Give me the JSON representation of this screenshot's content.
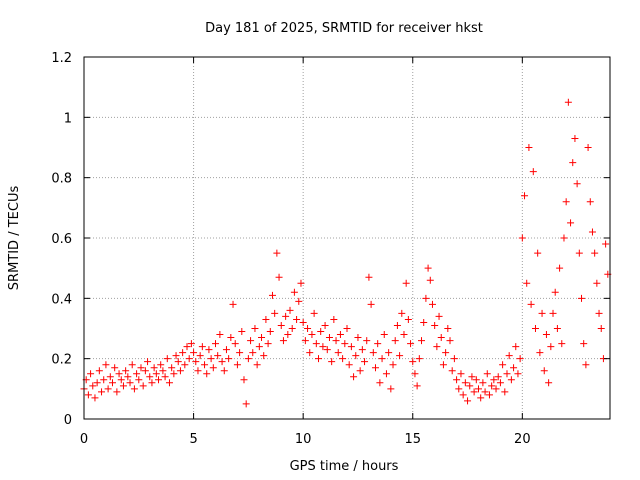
{
  "chart_data": {
    "type": "scatter",
    "title": "Day 181 of 2025, SRMTID for receiver hkst",
    "xlabel": "GPS time / hours",
    "ylabel": "SRMTID / TECUs",
    "xlim": [
      0,
      24
    ],
    "ylim": [
      0,
      1.2
    ],
    "grid": true,
    "marker": "+",
    "marker_color": "#ff0000",
    "xticks": [
      0,
      5,
      10,
      15,
      20
    ],
    "xtick_labels": [
      "0",
      "5",
      "10",
      "15",
      "20"
    ],
    "yticks": [
      0,
      0.2,
      0.4,
      0.6,
      0.8,
      1.0,
      1.2
    ],
    "ytick_labels": [
      "0",
      "0.2",
      "0.4",
      "0.6",
      "0.8",
      "1",
      "1.2"
    ],
    "series": [
      {
        "name": "SRMTID",
        "points": [
          [
            0.0,
            0.1
          ],
          [
            0.1,
            0.13
          ],
          [
            0.2,
            0.08
          ],
          [
            0.3,
            0.15
          ],
          [
            0.4,
            0.11
          ],
          [
            0.5,
            0.07
          ],
          [
            0.6,
            0.12
          ],
          [
            0.7,
            0.16
          ],
          [
            0.8,
            0.09
          ],
          [
            0.9,
            0.13
          ],
          [
            1.0,
            0.18
          ],
          [
            1.1,
            0.1
          ],
          [
            1.2,
            0.14
          ],
          [
            1.3,
            0.12
          ],
          [
            1.4,
            0.17
          ],
          [
            1.5,
            0.09
          ],
          [
            1.6,
            0.15
          ],
          [
            1.7,
            0.13
          ],
          [
            1.8,
            0.11
          ],
          [
            1.9,
            0.16
          ],
          [
            2.0,
            0.14
          ],
          [
            2.1,
            0.12
          ],
          [
            2.2,
            0.18
          ],
          [
            2.3,
            0.1
          ],
          [
            2.4,
            0.15
          ],
          [
            2.5,
            0.13
          ],
          [
            2.6,
            0.17
          ],
          [
            2.7,
            0.11
          ],
          [
            2.8,
            0.16
          ],
          [
            2.9,
            0.19
          ],
          [
            3.0,
            0.14
          ],
          [
            3.1,
            0.12
          ],
          [
            3.2,
            0.17
          ],
          [
            3.3,
            0.15
          ],
          [
            3.4,
            0.13
          ],
          [
            3.5,
            0.18
          ],
          [
            3.6,
            0.16
          ],
          [
            3.7,
            0.14
          ],
          [
            3.8,
            0.2
          ],
          [
            3.9,
            0.12
          ],
          [
            4.0,
            0.17
          ],
          [
            4.1,
            0.15
          ],
          [
            4.2,
            0.21
          ],
          [
            4.3,
            0.19
          ],
          [
            4.4,
            0.16
          ],
          [
            4.5,
            0.22
          ],
          [
            4.6,
            0.18
          ],
          [
            4.7,
            0.24
          ],
          [
            4.8,
            0.2
          ],
          [
            4.9,
            0.25
          ],
          [
            5.0,
            0.22
          ],
          [
            5.1,
            0.19
          ],
          [
            5.2,
            0.16
          ],
          [
            5.3,
            0.21
          ],
          [
            5.4,
            0.24
          ],
          [
            5.5,
            0.18
          ],
          [
            5.6,
            0.15
          ],
          [
            5.7,
            0.23
          ],
          [
            5.8,
            0.2
          ],
          [
            5.9,
            0.17
          ],
          [
            6.0,
            0.25
          ],
          [
            6.1,
            0.21
          ],
          [
            6.2,
            0.28
          ],
          [
            6.3,
            0.19
          ],
          [
            6.4,
            0.16
          ],
          [
            6.5,
            0.23
          ],
          [
            6.6,
            0.2
          ],
          [
            6.7,
            0.27
          ],
          [
            6.8,
            0.38
          ],
          [
            6.9,
            0.25
          ],
          [
            7.0,
            0.18
          ],
          [
            7.1,
            0.22
          ],
          [
            7.2,
            0.29
          ],
          [
            7.3,
            0.13
          ],
          [
            7.4,
            0.05
          ],
          [
            7.5,
            0.2
          ],
          [
            7.6,
            0.26
          ],
          [
            7.7,
            0.22
          ],
          [
            7.8,
            0.3
          ],
          [
            7.9,
            0.18
          ],
          [
            8.0,
            0.24
          ],
          [
            8.1,
            0.27
          ],
          [
            8.2,
            0.21
          ],
          [
            8.3,
            0.33
          ],
          [
            8.4,
            0.25
          ],
          [
            8.5,
            0.29
          ],
          [
            8.6,
            0.41
          ],
          [
            8.7,
            0.35
          ],
          [
            8.8,
            0.55
          ],
          [
            8.9,
            0.47
          ],
          [
            9.0,
            0.31
          ],
          [
            9.1,
            0.26
          ],
          [
            9.2,
            0.34
          ],
          [
            9.3,
            0.28
          ],
          [
            9.4,
            0.36
          ],
          [
            9.5,
            0.3
          ],
          [
            9.6,
            0.42
          ],
          [
            9.7,
            0.33
          ],
          [
            9.8,
            0.39
          ],
          [
            9.9,
            0.45
          ],
          [
            10.0,
            0.32
          ],
          [
            10.1,
            0.26
          ],
          [
            10.2,
            0.3
          ],
          [
            10.3,
            0.22
          ],
          [
            10.4,
            0.28
          ],
          [
            10.5,
            0.35
          ],
          [
            10.6,
            0.25
          ],
          [
            10.7,
            0.2
          ],
          [
            10.8,
            0.29
          ],
          [
            10.9,
            0.24
          ],
          [
            11.0,
            0.31
          ],
          [
            11.1,
            0.23
          ],
          [
            11.2,
            0.27
          ],
          [
            11.3,
            0.19
          ],
          [
            11.4,
            0.33
          ],
          [
            11.5,
            0.26
          ],
          [
            11.6,
            0.22
          ],
          [
            11.7,
            0.28
          ],
          [
            11.8,
            0.2
          ],
          [
            11.9,
            0.25
          ],
          [
            12.0,
            0.3
          ],
          [
            12.1,
            0.18
          ],
          [
            12.2,
            0.24
          ],
          [
            12.3,
            0.14
          ],
          [
            12.4,
            0.21
          ],
          [
            12.5,
            0.27
          ],
          [
            12.6,
            0.16
          ],
          [
            12.7,
            0.23
          ],
          [
            12.8,
            0.19
          ],
          [
            12.9,
            0.26
          ],
          [
            13.0,
            0.47
          ],
          [
            13.1,
            0.38
          ],
          [
            13.2,
            0.22
          ],
          [
            13.3,
            0.17
          ],
          [
            13.4,
            0.25
          ],
          [
            13.5,
            0.12
          ],
          [
            13.6,
            0.2
          ],
          [
            13.7,
            0.28
          ],
          [
            13.8,
            0.15
          ],
          [
            13.9,
            0.22
          ],
          [
            14.0,
            0.1
          ],
          [
            14.1,
            0.18
          ],
          [
            14.2,
            0.26
          ],
          [
            14.3,
            0.31
          ],
          [
            14.4,
            0.21
          ],
          [
            14.5,
            0.35
          ],
          [
            14.6,
            0.28
          ],
          [
            14.7,
            0.45
          ],
          [
            14.8,
            0.33
          ],
          [
            14.9,
            0.25
          ],
          [
            15.0,
            0.19
          ],
          [
            15.1,
            0.15
          ],
          [
            15.2,
            0.11
          ],
          [
            15.3,
            0.2
          ],
          [
            15.4,
            0.26
          ],
          [
            15.5,
            0.32
          ],
          [
            15.6,
            0.4
          ],
          [
            15.7,
            0.5
          ],
          [
            15.8,
            0.46
          ],
          [
            15.9,
            0.38
          ],
          [
            16.0,
            0.31
          ],
          [
            16.1,
            0.24
          ],
          [
            16.2,
            0.34
          ],
          [
            16.3,
            0.27
          ],
          [
            16.4,
            0.18
          ],
          [
            16.5,
            0.22
          ],
          [
            16.6,
            0.3
          ],
          [
            16.7,
            0.26
          ],
          [
            16.8,
            0.16
          ],
          [
            16.9,
            0.2
          ],
          [
            17.0,
            0.13
          ],
          [
            17.1,
            0.1
          ],
          [
            17.2,
            0.15
          ],
          [
            17.3,
            0.08
          ],
          [
            17.4,
            0.12
          ],
          [
            17.5,
            0.06
          ],
          [
            17.6,
            0.11
          ],
          [
            17.7,
            0.14
          ],
          [
            17.8,
            0.09
          ],
          [
            17.9,
            0.13
          ],
          [
            18.0,
            0.1
          ],
          [
            18.1,
            0.07
          ],
          [
            18.2,
            0.12
          ],
          [
            18.3,
            0.09
          ],
          [
            18.4,
            0.15
          ],
          [
            18.5,
            0.08
          ],
          [
            18.6,
            0.11
          ],
          [
            18.7,
            0.13
          ],
          [
            18.8,
            0.1
          ],
          [
            18.9,
            0.14
          ],
          [
            19.0,
            0.12
          ],
          [
            19.1,
            0.18
          ],
          [
            19.2,
            0.09
          ],
          [
            19.3,
            0.15
          ],
          [
            19.4,
            0.21
          ],
          [
            19.5,
            0.13
          ],
          [
            19.6,
            0.17
          ],
          [
            19.7,
            0.24
          ],
          [
            19.8,
            0.15
          ],
          [
            19.9,
            0.2
          ],
          [
            20.0,
            0.6
          ],
          [
            20.1,
            0.74
          ],
          [
            20.2,
            0.45
          ],
          [
            20.3,
            0.9
          ],
          [
            20.4,
            0.38
          ],
          [
            20.5,
            0.82
          ],
          [
            20.6,
            0.3
          ],
          [
            20.7,
            0.55
          ],
          [
            20.8,
            0.22
          ],
          [
            20.9,
            0.35
          ],
          [
            21.0,
            0.16
          ],
          [
            21.1,
            0.28
          ],
          [
            21.2,
            0.12
          ],
          [
            21.3,
            0.24
          ],
          [
            21.4,
            0.35
          ],
          [
            21.5,
            0.42
          ],
          [
            21.6,
            0.3
          ],
          [
            21.7,
            0.5
          ],
          [
            21.8,
            0.25
          ],
          [
            21.9,
            0.6
          ],
          [
            22.0,
            0.72
          ],
          [
            22.1,
            1.05
          ],
          [
            22.2,
            0.65
          ],
          [
            22.3,
            0.85
          ],
          [
            22.4,
            0.93
          ],
          [
            22.5,
            0.78
          ],
          [
            22.6,
            0.55
          ],
          [
            22.7,
            0.4
          ],
          [
            22.8,
            0.25
          ],
          [
            22.9,
            0.18
          ],
          [
            23.0,
            0.9
          ],
          [
            23.1,
            0.72
          ],
          [
            23.2,
            0.62
          ],
          [
            23.3,
            0.55
          ],
          [
            23.4,
            0.45
          ],
          [
            23.5,
            0.35
          ],
          [
            23.6,
            0.3
          ],
          [
            23.7,
            0.2
          ],
          [
            23.8,
            0.58
          ],
          [
            23.9,
            0.48
          ]
        ]
      }
    ]
  }
}
